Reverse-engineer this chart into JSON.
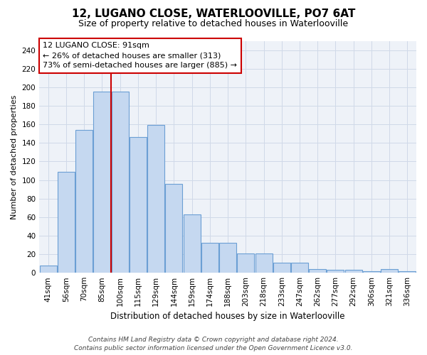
{
  "title": "12, LUGANO CLOSE, WATERLOOVILLE, PO7 6AT",
  "subtitle": "Size of property relative to detached houses in Waterlooville",
  "xlabel": "Distribution of detached houses by size in Waterlooville",
  "ylabel": "Number of detached properties",
  "categories": [
    "41sqm",
    "56sqm",
    "70sqm",
    "85sqm",
    "100sqm",
    "115sqm",
    "129sqm",
    "144sqm",
    "159sqm",
    "174sqm",
    "188sqm",
    "203sqm",
    "218sqm",
    "233sqm",
    "247sqm",
    "262sqm",
    "277sqm",
    "292sqm",
    "306sqm",
    "321sqm",
    "336sqm"
  ],
  "values": [
    8,
    109,
    154,
    195,
    195,
    146,
    159,
    96,
    63,
    32,
    32,
    21,
    21,
    11,
    11,
    4,
    3,
    3,
    2,
    4,
    2
  ],
  "bar_color": "#c5d8f0",
  "bar_edge_color": "#6b9fd4",
  "vline_color": "#cc0000",
  "vline_x": 3.0,
  "annotation_text": "12 LUGANO CLOSE: 91sqm\n← 26% of detached houses are smaller (313)\n73% of semi-detached houses are larger (885) →",
  "annotation_box_color": "#ffffff",
  "annotation_box_edge": "#cc0000",
  "ylim": [
    0,
    250
  ],
  "yticks": [
    0,
    20,
    40,
    60,
    80,
    100,
    120,
    140,
    160,
    180,
    200,
    220,
    240
  ],
  "footer_line1": "Contains HM Land Registry data © Crown copyright and database right 2024.",
  "footer_line2": "Contains public sector information licensed under the Open Government Licence v3.0.",
  "grid_color": "#d0d9e8",
  "bg_color": "#eef2f8",
  "title_fontsize": 11,
  "subtitle_fontsize": 9,
  "ylabel_fontsize": 8,
  "xlabel_fontsize": 8.5,
  "tick_fontsize": 7.5,
  "annot_fontsize": 8,
  "footer_fontsize": 6.5
}
